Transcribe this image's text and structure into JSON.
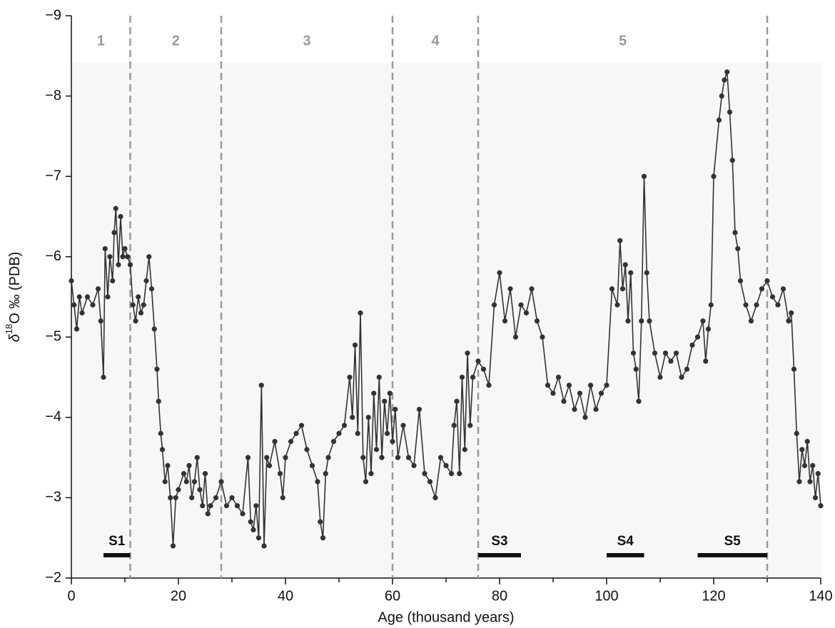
{
  "chart_data": {
    "type": "line",
    "x_label": "Age (thousand years)",
    "y_label": [
      "δ",
      "18",
      "O ‰ (PDB)"
    ],
    "xlim": [
      0,
      140
    ],
    "xticks": [
      0,
      20,
      40,
      60,
      80,
      100,
      120,
      140
    ],
    "xminorticks": [
      10,
      30,
      50,
      70,
      90,
      110,
      130
    ],
    "ylim": [
      -2,
      -9
    ],
    "yticks": [
      {
        "value": -2,
        "label": "−2"
      },
      {
        "value": -3,
        "label": "−3"
      },
      {
        "value": -4,
        "label": "−4"
      },
      {
        "value": -5,
        "label": "−5"
      },
      {
        "value": -6,
        "label": "−6"
      },
      {
        "value": -7,
        "label": "−7"
      },
      {
        "value": -8,
        "label": "−8"
      },
      {
        "value": -9,
        "label": "−9"
      }
    ],
    "color": "#333333",
    "stage_boundaries": [
      11,
      28,
      60,
      76,
      130
    ],
    "stage_labels": [
      "1",
      "2",
      "3",
      "4",
      "5"
    ],
    "segments": [
      {
        "label": "S1",
        "start": 6,
        "end": 11
      },
      {
        "label": "S3",
        "start": 76,
        "end": 84
      },
      {
        "label": "S4",
        "start": 100,
        "end": 107
      },
      {
        "label": "S5",
        "start": 117,
        "end": 130
      }
    ],
    "x": [
      0,
      0.5,
      1,
      1.5,
      2,
      3,
      4,
      5,
      5.5,
      6,
      6.3,
      6.8,
      7.2,
      7.7,
      8,
      8.3,
      8.8,
      9.2,
      9.6,
      10,
      10.5,
      11,
      11.5,
      12,
      12.5,
      13,
      13.5,
      14,
      14.5,
      15,
      15.5,
      16,
      16.3,
      16.7,
      17,
      17.5,
      18,
      18.5,
      19,
      19.5,
      20,
      21,
      21.5,
      22,
      22.5,
      23,
      23.5,
      24,
      24.5,
      25,
      25.5,
      26,
      27,
      28,
      29,
      30,
      31,
      32,
      33,
      33.5,
      34,
      34.5,
      35,
      35.5,
      36,
      36.5,
      37,
      38,
      39,
      39.5,
      40,
      41,
      42,
      43,
      44,
      45,
      46,
      46.5,
      47,
      47.5,
      48,
      49,
      50,
      51,
      52,
      52.5,
      53,
      53.5,
      54,
      54.5,
      55,
      55.5,
      56,
      56.5,
      57,
      57.5,
      58,
      58.5,
      59,
      59.5,
      60,
      60.5,
      61,
      62,
      63,
      64,
      65,
      66,
      67,
      68,
      69,
      70,
      71,
      71.5,
      72,
      72.5,
      73,
      73.5,
      74,
      74.5,
      75,
      76,
      77,
      78,
      79,
      80,
      81,
      82,
      83,
      84,
      85,
      86,
      87,
      88,
      89,
      90,
      91,
      92,
      93,
      94,
      95,
      96,
      97,
      98,
      99,
      100,
      101,
      102,
      102.5,
      103,
      103.5,
      104,
      104.5,
      105,
      105.5,
      106,
      106.5,
      107,
      107.5,
      108,
      109,
      110,
      111,
      112,
      113,
      114,
      115,
      116,
      117,
      118,
      118.5,
      119,
      119.5,
      120,
      121,
      121.5,
      122,
      122.5,
      123,
      123.5,
      124,
      124.5,
      125,
      126,
      127,
      128,
      129,
      130,
      131,
      132,
      133,
      134,
      134.5,
      135,
      135.5,
      136,
      136.5,
      137,
      137.5,
      138,
      138.5,
      139,
      139.5,
      140
    ],
    "values": [
      -5.7,
      -5.4,
      -5.1,
      -5.5,
      -5.3,
      -5.5,
      -5.4,
      -5.6,
      -5.2,
      -4.5,
      -6.1,
      -5.5,
      -6.0,
      -5.7,
      -6.3,
      -6.6,
      -5.9,
      -6.5,
      -6.0,
      -6.1,
      -6.0,
      -5.9,
      -5.4,
      -5.2,
      -5.5,
      -5.3,
      -5.4,
      -5.7,
      -6.0,
      -5.6,
      -5.1,
      -4.6,
      -4.2,
      -3.8,
      -3.6,
      -3.2,
      -3.4,
      -3.0,
      -2.4,
      -3.0,
      -3.1,
      -3.3,
      -3.2,
      -3.4,
      -3.0,
      -3.2,
      -3.5,
      -3.1,
      -2.9,
      -3.3,
      -2.8,
      -2.9,
      -3.0,
      -3.2,
      -2.9,
      -3.0,
      -2.9,
      -2.8,
      -3.5,
      -2.7,
      -2.6,
      -2.9,
      -2.5,
      -4.4,
      -2.4,
      -3.5,
      -3.4,
      -3.7,
      -3.3,
      -3.0,
      -3.5,
      -3.7,
      -3.8,
      -3.9,
      -3.6,
      -3.4,
      -3.2,
      -2.7,
      -2.5,
      -3.3,
      -3.5,
      -3.7,
      -3.8,
      -3.9,
      -4.5,
      -4.0,
      -4.9,
      -3.8,
      -5.3,
      -3.5,
      -3.2,
      -4.0,
      -3.3,
      -4.3,
      -3.6,
      -4.5,
      -3.5,
      -4.2,
      -3.8,
      -4.3,
      -3.7,
      -4.1,
      -3.5,
      -3.9,
      -3.5,
      -3.4,
      -4.1,
      -3.3,
      -3.2,
      -3.0,
      -3.5,
      -3.4,
      -3.3,
      -3.9,
      -4.2,
      -3.3,
      -4.5,
      -3.6,
      -4.8,
      -3.9,
      -4.5,
      -4.7,
      -4.6,
      -4.4,
      -5.4,
      -5.8,
      -5.2,
      -5.6,
      -5.0,
      -5.4,
      -5.3,
      -5.6,
      -5.2,
      -5.0,
      -4.4,
      -4.3,
      -4.5,
      -4.2,
      -4.4,
      -4.1,
      -4.3,
      -4.0,
      -4.4,
      -4.1,
      -4.3,
      -4.4,
      -5.6,
      -5.4,
      -6.2,
      -5.6,
      -5.9,
      -5.2,
      -5.8,
      -4.8,
      -4.6,
      -4.2,
      -5.2,
      -7.0,
      -5.8,
      -5.2,
      -4.8,
      -4.5,
      -4.8,
      -4.7,
      -4.8,
      -4.5,
      -4.6,
      -4.9,
      -5.0,
      -5.2,
      -4.7,
      -5.1,
      -5.4,
      -7.0,
      -7.7,
      -8.0,
      -8.2,
      -8.3,
      -7.8,
      -7.2,
      -6.3,
      -6.1,
      -5.7,
      -5.4,
      -5.2,
      -5.4,
      -5.6,
      -5.7,
      -5.5,
      -5.4,
      -5.6,
      -5.2,
      -5.3,
      -4.6,
      -3.8,
      -3.2,
      -3.6,
      -3.4,
      -3.7,
      -3.2,
      -3.4,
      -3.0,
      -3.3,
      -2.9
    ]
  }
}
